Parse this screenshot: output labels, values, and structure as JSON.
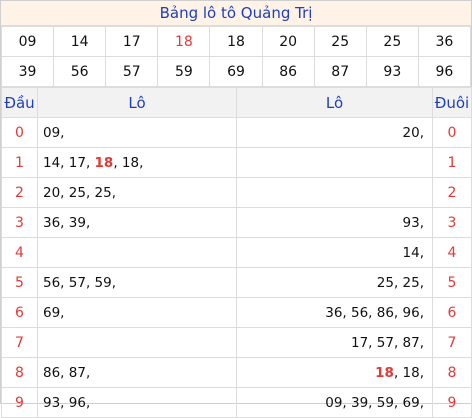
{
  "title": "Bảng lô tô Quảng Trị",
  "numbers_row1": [
    "09",
    "14",
    "17",
    "18",
    "18",
    "20",
    "25",
    "25",
    "36"
  ],
  "numbers_row2": [
    "39",
    "56",
    "57",
    "59",
    "69",
    "86",
    "87",
    "93",
    "96"
  ],
  "highlight_index_row1": 3,
  "headers": {
    "dau": "Đầu",
    "lo_left": "Lô",
    "lo_right": "Lô",
    "duoi": "Đuôi"
  },
  "rows": [
    {
      "dau": "0",
      "left_a": "",
      "left_hl": "",
      "left_b": "09,",
      "right_a": "",
      "right_hl": "",
      "right_b": "20,",
      "duoi": "0"
    },
    {
      "dau": "1",
      "left_a": "14, 17, ",
      "left_hl": "18",
      "left_b": ", 18,",
      "right_a": "",
      "right_hl": "",
      "right_b": "",
      "duoi": "1"
    },
    {
      "dau": "2",
      "left_a": "",
      "left_hl": "",
      "left_b": "20, 25, 25,",
      "right_a": "",
      "right_hl": "",
      "right_b": "",
      "duoi": "2"
    },
    {
      "dau": "3",
      "left_a": "",
      "left_hl": "",
      "left_b": "36, 39,",
      "right_a": "",
      "right_hl": "",
      "right_b": "93,",
      "duoi": "3"
    },
    {
      "dau": "4",
      "left_a": "",
      "left_hl": "",
      "left_b": "",
      "right_a": "",
      "right_hl": "",
      "right_b": "14,",
      "duoi": "4"
    },
    {
      "dau": "5",
      "left_a": "",
      "left_hl": "",
      "left_b": "56, 57, 59,",
      "right_a": "",
      "right_hl": "",
      "right_b": "25, 25,",
      "duoi": "5"
    },
    {
      "dau": "6",
      "left_a": "",
      "left_hl": "",
      "left_b": "69,",
      "right_a": "",
      "right_hl": "",
      "right_b": "36, 56, 86, 96,",
      "duoi": "6"
    },
    {
      "dau": "7",
      "left_a": "",
      "left_hl": "",
      "left_b": "",
      "right_a": "",
      "right_hl": "",
      "right_b": "17, 57, 87,",
      "duoi": "7"
    },
    {
      "dau": "8",
      "left_a": "",
      "left_hl": "",
      "left_b": "86, 87,",
      "right_a": "",
      "right_hl": "18",
      "right_b": ", 18,",
      "duoi": "8"
    },
    {
      "dau": "9",
      "left_a": "",
      "left_hl": "",
      "left_b": "93, 96,",
      "right_a": "",
      "right_hl": "",
      "right_b": "09, 39, 59, 69,",
      "duoi": "9"
    }
  ]
}
